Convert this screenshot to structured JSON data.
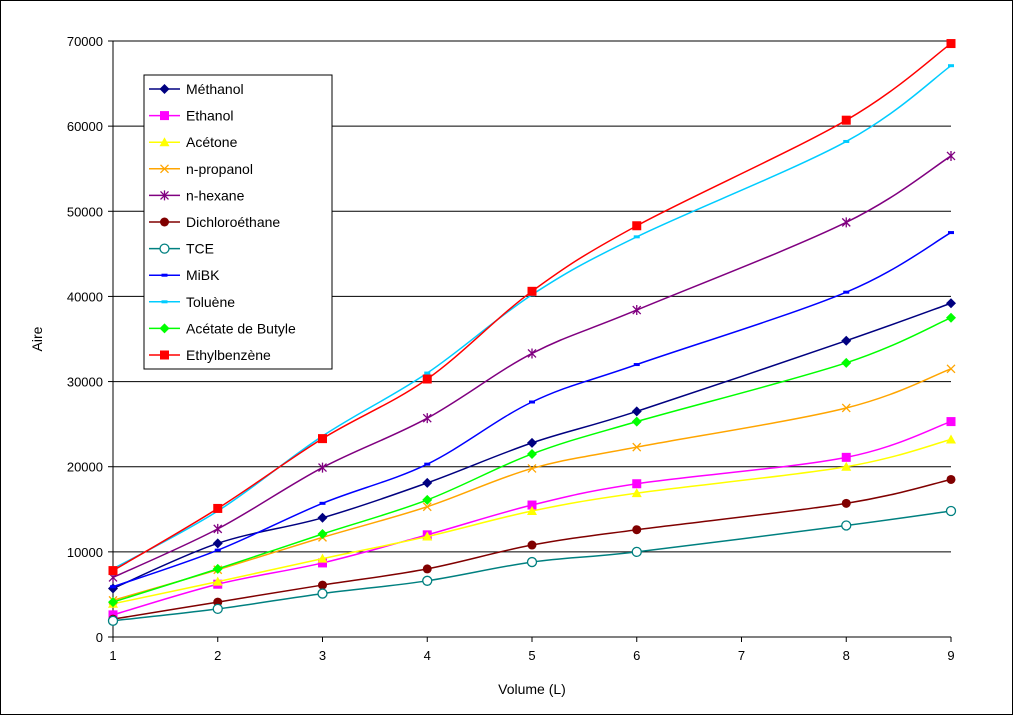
{
  "chart_data": {
    "type": "line",
    "title": "",
    "xlabel": "Volume (L)",
    "ylabel": "Aire",
    "x": [
      1,
      2,
      3,
      4,
      5,
      6,
      8,
      9
    ],
    "x_ticks": [
      1,
      2,
      3,
      4,
      5,
      6,
      7,
      8,
      9
    ],
    "xlim": [
      1,
      9
    ],
    "ylim": [
      0,
      70000
    ],
    "y_ticks": [
      0,
      10000,
      20000,
      30000,
      40000,
      50000,
      60000,
      70000
    ],
    "y_tick_labels": [
      "0",
      "10000",
      "20000",
      "30000",
      "40000",
      "50000",
      "60000",
      "70000"
    ],
    "grid": "horizontal",
    "legend_position": "top-left",
    "series": [
      {
        "name": "Méthanol",
        "color": "#000080",
        "marker": "diamond",
        "values": [
          5700,
          11000,
          14000,
          18100,
          22800,
          26500,
          34800,
          39200
        ]
      },
      {
        "name": "Ethanol",
        "color": "#FF00FF",
        "marker": "square",
        "values": [
          2600,
          6200,
          8700,
          12000,
          15500,
          18000,
          21100,
          25300
        ]
      },
      {
        "name": "Acétone",
        "color": "#FFFF00",
        "marker": "triangle",
        "values": [
          3900,
          6500,
          9200,
          11800,
          14800,
          16900,
          20000,
          23200
        ]
      },
      {
        "name": "n-propanol",
        "color": "#FFA500",
        "marker": "x",
        "values": [
          4300,
          7900,
          11700,
          15300,
          19800,
          22300,
          26900,
          31500
        ]
      },
      {
        "name": "n-hexane",
        "color": "#800080",
        "marker": "asterisk",
        "values": [
          7000,
          12700,
          19900,
          25700,
          33300,
          38400,
          48700,
          56500
        ]
      },
      {
        "name": "Dichloroéthane",
        "color": "#800000",
        "marker": "circle",
        "values": [
          2100,
          4100,
          6100,
          8000,
          10800,
          12600,
          15700,
          18500
        ]
      },
      {
        "name": "TCE",
        "color": "#008080",
        "marker": "circle-open",
        "values": [
          1900,
          3300,
          5100,
          6600,
          8800,
          10000,
          13100,
          14800
        ]
      },
      {
        "name": "MiBK",
        "color": "#0000FF",
        "marker": "dash",
        "values": [
          5900,
          10200,
          15700,
          20300,
          27600,
          32000,
          40500,
          47500
        ]
      },
      {
        "name": "Toluène",
        "color": "#00CCFF",
        "marker": "dash",
        "values": [
          8000,
          14800,
          23600,
          31000,
          40200,
          47000,
          58200,
          67100
        ]
      },
      {
        "name": "Acétate de Butyle",
        "color": "#00FF00",
        "marker": "diamond",
        "values": [
          4100,
          8000,
          12100,
          16100,
          21500,
          25300,
          32200,
          37500
        ]
      },
      {
        "name": "Ethylbenzène",
        "color": "#FF0000",
        "marker": "square",
        "values": [
          7800,
          15100,
          23300,
          30300,
          40600,
          48300,
          60700,
          69700
        ]
      }
    ]
  }
}
